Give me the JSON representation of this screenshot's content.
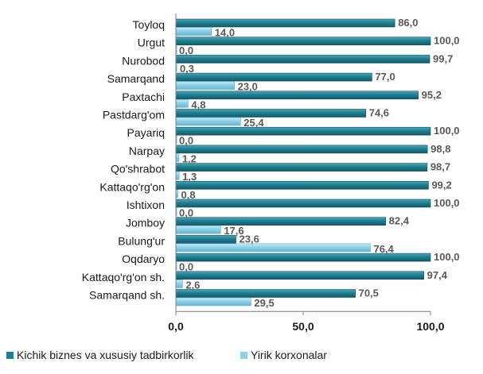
{
  "chart_data": {
    "type": "bar",
    "orientation": "horizontal",
    "categories": [
      "Toyloq",
      "Urgut",
      "Nurobod",
      "Samarqand",
      "Paxtachi",
      "Pastdarg'om",
      "Payariq",
      "Narpay",
      "Qo'shrabot",
      "Kattaqo'rg'on",
      "Ishtixon",
      "Jomboy",
      "Bulung'ur",
      "Oqdaryo",
      "Kattaqo'rg'on sh.",
      "Samarqand sh."
    ],
    "series": [
      {
        "name": "Kichik biznes  va xususiy tadbirkorlik",
        "color": "#1f7f92",
        "values": [
          86.0,
          100.0,
          99.7,
          77.0,
          95.2,
          74.6,
          100.0,
          98.8,
          98.7,
          99.2,
          100.0,
          82.4,
          23.6,
          100.0,
          97.4,
          70.5
        ],
        "labels": [
          "86,0",
          "100,0",
          "99,7",
          "77,0",
          "95,2",
          "74,6",
          "100,0",
          "98,8",
          "98,7",
          "99,2",
          "100,0",
          "82,4",
          "23,6",
          "100,0",
          "97,4",
          "70,5"
        ]
      },
      {
        "name": "Yirik korxonalar",
        "color": "#8fd0e6",
        "values": [
          14.0,
          0.0,
          0.3,
          23.0,
          4.8,
          25.4,
          0.0,
          1.2,
          1.3,
          0.8,
          0.0,
          17.6,
          76.4,
          0.0,
          2.6,
          29.5
        ],
        "labels": [
          "14,0",
          "0,0",
          "0,3",
          "23,0",
          "4,8",
          "25,4",
          "0,0",
          "1,2",
          "1,3",
          "0,8",
          "0,0",
          "17,6",
          "76,4",
          "0,0",
          "2,6",
          "29,5"
        ]
      }
    ],
    "xlim": [
      0,
      100
    ],
    "x_ticks": [
      0,
      50,
      100
    ],
    "x_tick_labels": [
      "0,0",
      "50,0",
      "100,0"
    ],
    "grid": false,
    "legend_position": "bottom"
  }
}
